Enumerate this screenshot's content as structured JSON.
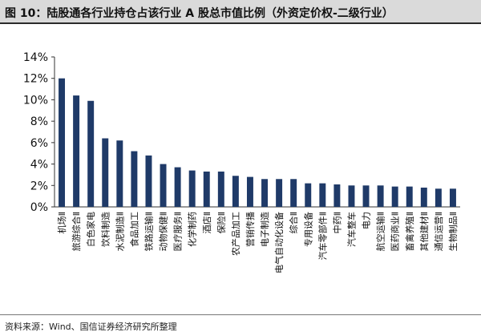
{
  "title": "图 10：陆股通各行业持仓占该行业 A 股总市值比例（外资定价权-二级行业）",
  "source": "资料来源：Wind、国信证券经济研究所整理",
  "colors": {
    "bar": "#1f3a68",
    "axis": "#333333",
    "text": "#111111"
  },
  "chart_data": {
    "type": "bar",
    "title": "",
    "xlabel": "",
    "ylabel": "",
    "ylim": [
      0,
      14
    ],
    "yticks": [
      "0%",
      "2%",
      "4%",
      "6%",
      "8%",
      "10%",
      "12%",
      "14%"
    ],
    "grid": false,
    "categories": [
      "机场Ⅱ",
      "旅游综合Ⅱ",
      "白色家电",
      "饮料制造",
      "水泥制造Ⅱ",
      "食品加工",
      "铁路运输Ⅱ",
      "动物保健Ⅱ",
      "医疗服务Ⅱ",
      "化学制药",
      "酒店Ⅱ",
      "保险Ⅱ",
      "农产品加工",
      "营销传播",
      "电子制造",
      "电气自动化设备",
      "综合Ⅱ",
      "专用设备",
      "汽车零部件Ⅱ",
      "中药Ⅱ",
      "汽车整车",
      "电力",
      "航空运输Ⅱ",
      "医药商业Ⅱ",
      "畜禽养殖Ⅱ",
      "其他建材Ⅱ",
      "通信运营Ⅱ",
      "生物制品Ⅱ"
    ],
    "values": [
      12.0,
      10.4,
      9.9,
      6.4,
      6.2,
      5.2,
      4.8,
      4.0,
      3.7,
      3.4,
      3.3,
      3.3,
      2.9,
      2.8,
      2.6,
      2.6,
      2.6,
      2.2,
      2.2,
      2.1,
      2.0,
      2.0,
      2.0,
      1.9,
      1.9,
      1.8,
      1.7,
      1.7
    ]
  }
}
